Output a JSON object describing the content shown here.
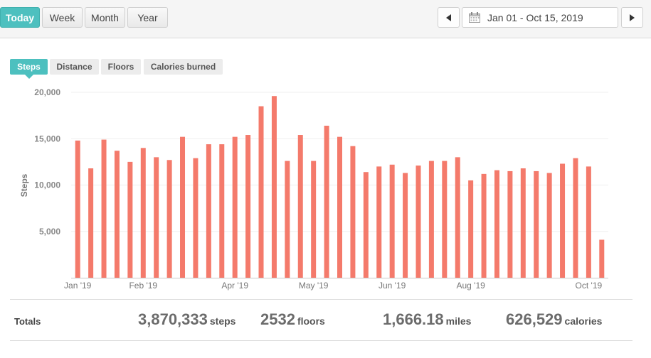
{
  "range_buttons": [
    "Today",
    "Week",
    "Month",
    "Year"
  ],
  "date_range": "Jan 01 - Oct 15, 2019",
  "icons": {
    "prev": "triangle-left-icon",
    "next": "triangle-right-icon",
    "calendar": "calendar-icon"
  },
  "metric_tabs": [
    "Steps",
    "Distance",
    "Floors",
    "Calories burned"
  ],
  "colors": {
    "accent": "#4dc0bf",
    "bar": "#f47a6b"
  },
  "chart_data": {
    "type": "bar",
    "ylabel": "Steps",
    "xlabel": "",
    "ylim": [
      0,
      20000
    ],
    "yticks": [
      5000,
      10000,
      15000,
      20000
    ],
    "ytick_labels": [
      "5,000",
      "10,000",
      "15,000",
      "20,000"
    ],
    "grid": true,
    "x_labels": [
      {
        "index": 0,
        "label": "Jan '19"
      },
      {
        "index": 5,
        "label": "Feb '19"
      },
      {
        "index": 12,
        "label": "Apr '19"
      },
      {
        "index": 18,
        "label": "May '19"
      },
      {
        "index": 24,
        "label": "Jun '19"
      },
      {
        "index": 30,
        "label": "Aug '19"
      },
      {
        "index": 39,
        "label": "Oct '19"
      }
    ],
    "values": [
      14800,
      11800,
      14900,
      13700,
      12500,
      14000,
      13000,
      12700,
      15200,
      12900,
      14400,
      14400,
      15200,
      15400,
      18500,
      19600,
      12600,
      15400,
      12600,
      16400,
      15200,
      14200,
      11400,
      12000,
      12200,
      11300,
      12100,
      12600,
      12600,
      13000,
      10500,
      11200,
      11600,
      11500,
      11800,
      11500,
      11300,
      12300,
      12900,
      12000,
      4100
    ]
  },
  "totals": {
    "label": "Totals",
    "items": [
      {
        "value": "3,870,333",
        "unit": "steps"
      },
      {
        "value": "2532",
        "unit": "floors"
      },
      {
        "value": "1,666.18",
        "unit": "miles"
      },
      {
        "value": "626,529",
        "unit": "calories"
      }
    ]
  }
}
